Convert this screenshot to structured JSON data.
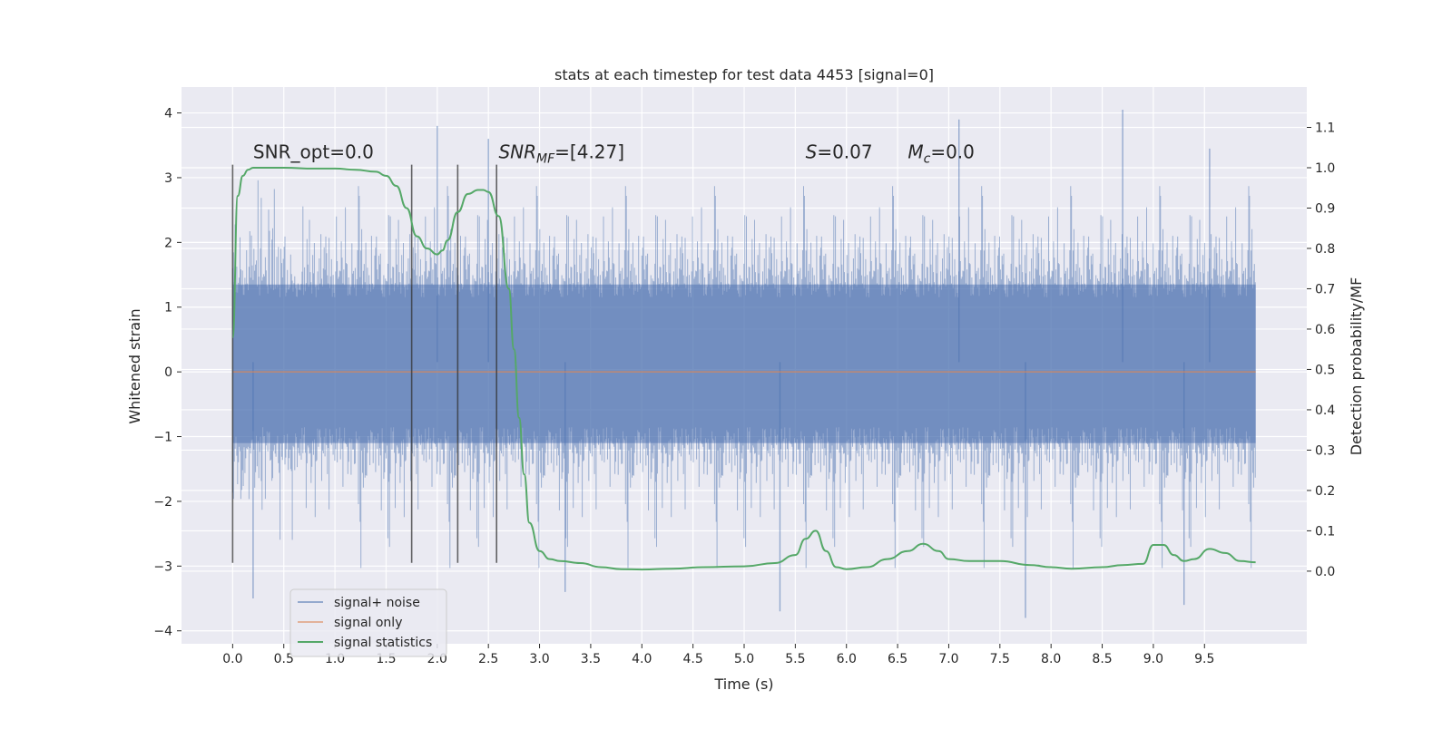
{
  "chart_data": {
    "type": "line",
    "title": "stats at each timestep for test data 4453 [signal=0]",
    "xlabel": "Time (s)",
    "ylabel_left": "Whitened strain",
    "ylabel_right": "Detection probability/MF",
    "xlim": [
      -0.5,
      10.5
    ],
    "ylim_left": [
      -4.2,
      4.4
    ],
    "ylim_right": [
      -0.18,
      1.2
    ],
    "x_ticks": [
      0.0,
      0.5,
      1.0,
      1.5,
      2.0,
      2.5,
      3.0,
      3.5,
      4.0,
      4.5,
      5.0,
      5.5,
      6.0,
      6.5,
      7.0,
      7.5,
      8.0,
      8.5,
      9.0,
      9.5
    ],
    "x_tick_labels": [
      "0.0",
      "0.5",
      "1.0",
      "1.5",
      "2.0",
      "2.5",
      "3.0",
      "3.5",
      "4.0",
      "4.5",
      "5.0",
      "5.5",
      "6.0",
      "6.5",
      "7.0",
      "7.5",
      "8.0",
      "8.5",
      "9.0",
      "9.5"
    ],
    "y_left_ticks": [
      4,
      3,
      2,
      1,
      0,
      -1,
      -2,
      -3,
      -4
    ],
    "y_left_tick_labels": [
      "4",
      "3",
      "2",
      "1",
      "0",
      "−1",
      "−2",
      "−3",
      "−4"
    ],
    "y_right_ticks": [
      1.1,
      1.0,
      0.9,
      0.8,
      0.7,
      0.6,
      0.5,
      0.4,
      0.3,
      0.2,
      0.1,
      0.0
    ],
    "y_right_tick_labels": [
      "1.1",
      "1.0",
      "0.9",
      "0.8",
      "0.7",
      "0.6",
      "0.5",
      "0.4",
      "0.3",
      "0.2",
      "0.1",
      "0.0"
    ],
    "grid": true,
    "legend_position": "lower-left",
    "background_color": "#eaeaf2",
    "series": [
      {
        "name": "signal+ noise",
        "color": "#4c72b0",
        "axis": "left",
        "render": "dense noise band",
        "x_range": [
          0.0,
          10.0
        ],
        "band_center": 0.15,
        "dense_band": [
          -1.1,
          1.35
        ],
        "typical_spikes": [
          -2.6,
          2.8
        ],
        "max_value": 4.05,
        "min_value": -3.8
      },
      {
        "name": "signal only",
        "color": "#dd8452",
        "axis": "left",
        "x": [
          0.0,
          10.0
        ],
        "values": [
          0.0,
          0.0
        ]
      },
      {
        "name": "signal statistics",
        "color": "#55a868",
        "axis": "right",
        "x": [
          0.0,
          0.05,
          0.1,
          0.15,
          0.2,
          0.3,
          0.5,
          0.8,
          1.0,
          1.2,
          1.4,
          1.5,
          1.6,
          1.7,
          1.8,
          1.9,
          2.0,
          2.05,
          2.1,
          2.2,
          2.3,
          2.4,
          2.45,
          2.5,
          2.6,
          2.7,
          2.75,
          2.8,
          2.85,
          2.9,
          3.0,
          3.1,
          3.2,
          3.4,
          3.6,
          3.8,
          4.0,
          4.3,
          4.6,
          5.0,
          5.3,
          5.5,
          5.6,
          5.7,
          5.8,
          5.9,
          6.0,
          6.2,
          6.4,
          6.6,
          6.75,
          6.9,
          7.0,
          7.2,
          7.5,
          7.8,
          8.0,
          8.2,
          8.5,
          8.7,
          8.9,
          9.0,
          9.1,
          9.2,
          9.3,
          9.4,
          9.55,
          9.7,
          9.85,
          10.0
        ],
        "values": [
          0.58,
          0.93,
          0.98,
          0.995,
          1.0,
          1.0,
          1.0,
          0.998,
          0.998,
          0.995,
          0.99,
          0.98,
          0.955,
          0.9,
          0.83,
          0.8,
          0.785,
          0.795,
          0.82,
          0.89,
          0.935,
          0.945,
          0.945,
          0.94,
          0.88,
          0.7,
          0.55,
          0.38,
          0.24,
          0.12,
          0.05,
          0.03,
          0.025,
          0.02,
          0.01,
          0.005,
          0.004,
          0.006,
          0.01,
          0.012,
          0.02,
          0.04,
          0.08,
          0.1,
          0.05,
          0.01,
          0.005,
          0.01,
          0.03,
          0.05,
          0.068,
          0.05,
          0.03,
          0.025,
          0.025,
          0.015,
          0.01,
          0.006,
          0.01,
          0.015,
          0.018,
          0.065,
          0.065,
          0.04,
          0.025,
          0.03,
          0.055,
          0.045,
          0.025,
          0.022
        ]
      }
    ],
    "vertical_markers": [
      0.0,
      1.75,
      2.2,
      2.58
    ],
    "vertical_marker_range": [
      -2.95,
      3.2
    ],
    "annotations": [
      {
        "text": "SNR_opt=0.0",
        "x": 0.2,
        "y": 3.3,
        "math": false
      },
      {
        "text": "SNR",
        "sub": "MF",
        "rest": "=[4.27]",
        "x": 2.6,
        "y": 3.3,
        "math": true
      },
      {
        "text": "S",
        "sub": "",
        "rest": "=0.07",
        "x": 5.6,
        "y": 3.3,
        "math": true
      },
      {
        "text": "M",
        "sub": "c",
        "rest": "=0.0",
        "x": 6.6,
        "y": 3.3,
        "math": true
      }
    ]
  }
}
